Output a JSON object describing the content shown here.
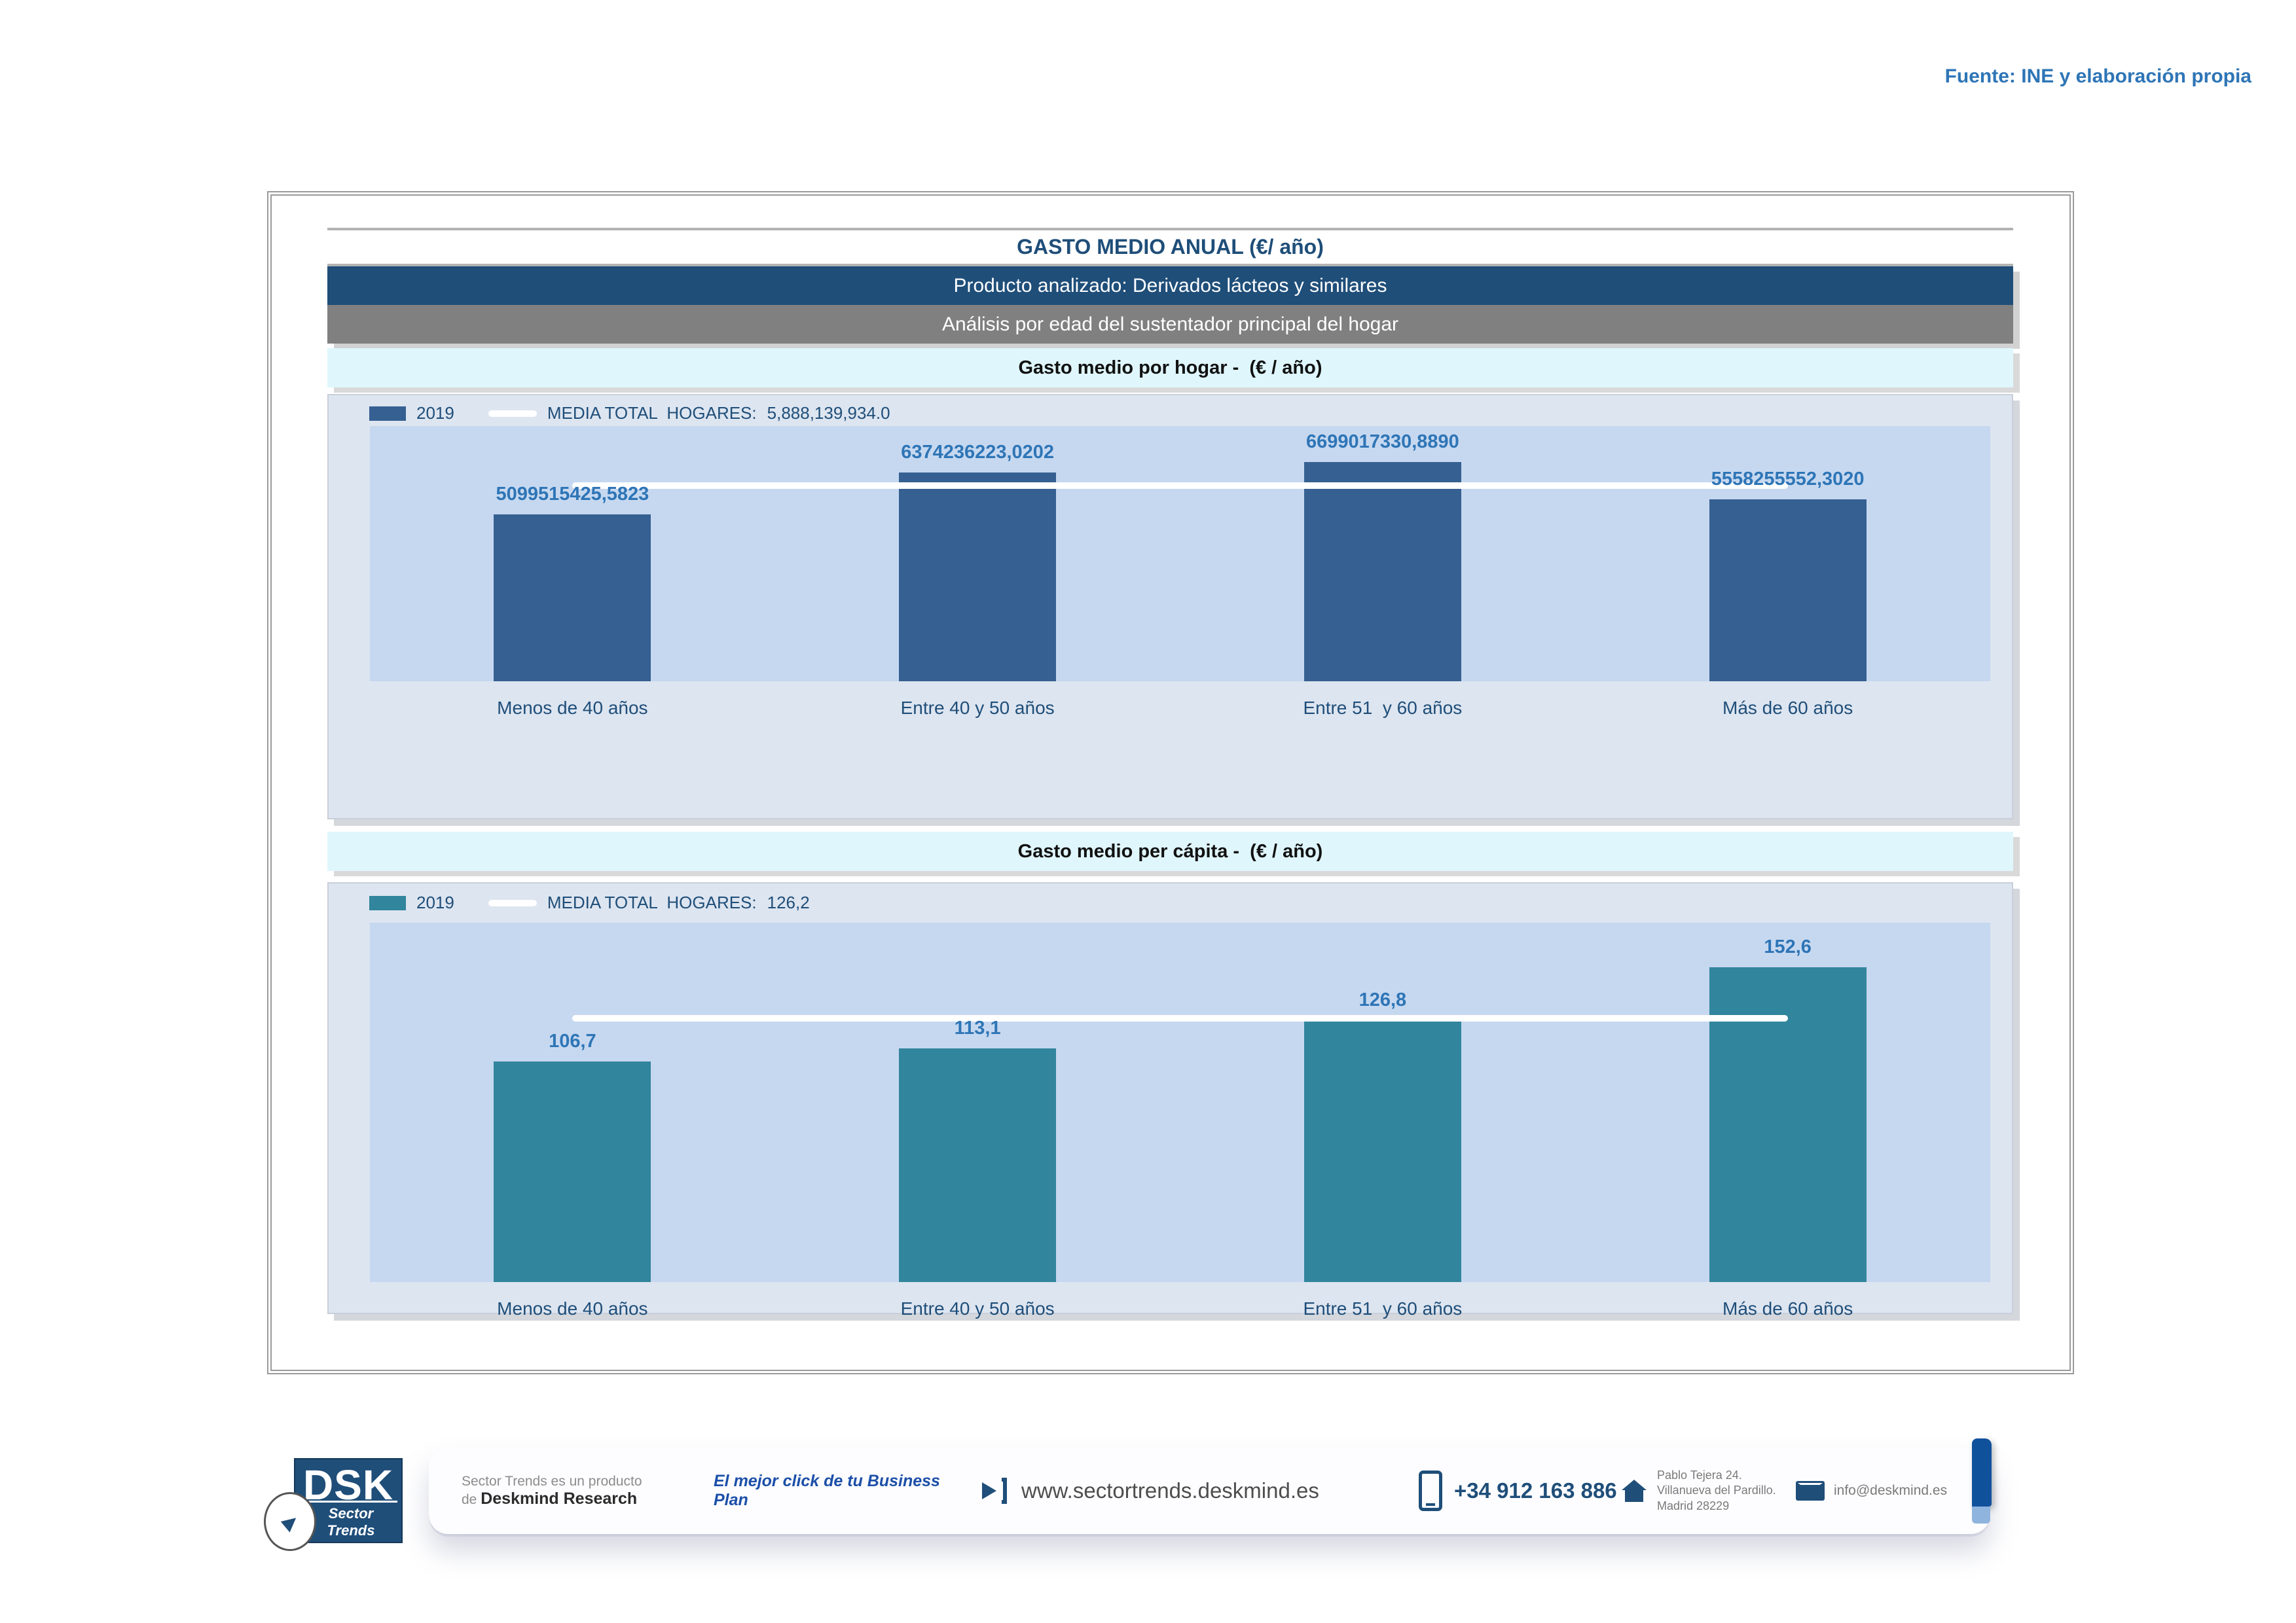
{
  "source_note": "Fuente: INE y elaboración propia",
  "header": {
    "title": "GASTO MEDIO ANUAL (€/ año)",
    "product": "Producto analizado: Derivados lácteos y similares",
    "analysis": "Análisis por edad del sustentador principal del hogar"
  },
  "chart_data": [
    {
      "type": "bar",
      "section_title": "Gasto medio por hogar -  (€ / año)",
      "legend": {
        "year": "2019",
        "media_label": "MEDIA TOTAL  HOGARES:",
        "media_value_label": "5,888,139,934.0"
      },
      "categories": [
        "Menos de 40 años",
        "Entre 40 y 50 años",
        "Entre 51  y 60 años",
        "Más de 60 años"
      ],
      "values": [
        5099515425.5823,
        6374236223.0202,
        6699017330.889,
        5558255552.302
      ],
      "value_labels": [
        "5099515425,5823",
        "6374236223,0202",
        "6699017330,8890",
        "5558255552,3020"
      ],
      "media_value": 5888139934.0,
      "ylim": [
        0,
        7800000000
      ],
      "grid": false,
      "legend_position": "top-left",
      "bar_color": "#366092",
      "media_line_color": "#ffffff"
    },
    {
      "type": "bar",
      "section_title": "Gasto medio per cápita -  (€ / año)",
      "legend": {
        "year": "2019",
        "media_label": "MEDIA TOTAL  HOGARES:",
        "media_value_label": "126,2"
      },
      "categories": [
        "Menos de 40 años",
        "Entre 40 y 50 años",
        "Entre 51  y 60 años",
        "Más de 60 años"
      ],
      "values": [
        106.7,
        113.1,
        126.8,
        152.6
      ],
      "value_labels": [
        "106,7",
        "113,1",
        "126,8",
        "152,6"
      ],
      "media_value": 126.2,
      "ylim": [
        0,
        174
      ],
      "grid": false,
      "legend_position": "top-left",
      "bar_color": "#31859C",
      "media_line_color": "#ffffff"
    }
  ],
  "footer": {
    "logo": {
      "acronym": "DSK",
      "brand": "Sector Trends"
    },
    "product_of_line1": "Sector Trends es un producto",
    "product_of_prefix": "de ",
    "product_of_name": "Deskmind Research",
    "tagline": "El mejor click de tu Business Plan",
    "website": "www.sectortrends.deskmind.es",
    "phone": "+34 912 163 886",
    "address_line1": "Pablo Tejera 24.",
    "address_line2": "Villanueva del Pardillo.",
    "address_line3": "Madrid 28229",
    "email": "info@deskmind.es"
  }
}
